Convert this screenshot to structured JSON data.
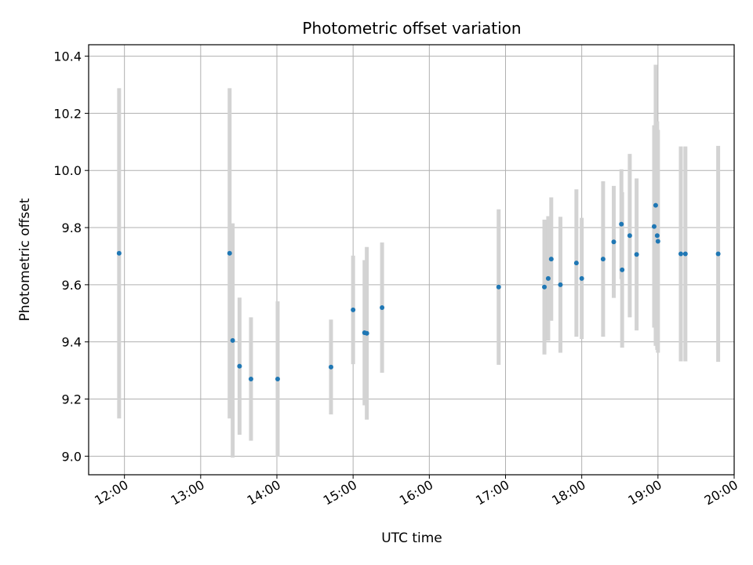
{
  "chart_data": {
    "type": "scatter",
    "title": "Photometric offset variation",
    "xlabel": "UTC time",
    "ylabel": "Photometric offset",
    "x_unit": "hours",
    "xlim": [
      11.53,
      20.0
    ],
    "ylim": [
      8.935,
      10.44
    ],
    "grid": true,
    "x_ticks": [
      {
        "value": 12,
        "label": "12:00"
      },
      {
        "value": 13,
        "label": "13:00"
      },
      {
        "value": 14,
        "label": "14:00"
      },
      {
        "value": 15,
        "label": "15:00"
      },
      {
        "value": 16,
        "label": "16:00"
      },
      {
        "value": 17,
        "label": "17:00"
      },
      {
        "value": 18,
        "label": "18:00"
      },
      {
        "value": 19,
        "label": "19:00"
      },
      {
        "value": 20,
        "label": "20:00"
      }
    ],
    "y_ticks": [
      {
        "value": 9.0,
        "label": "9.0"
      },
      {
        "value": 9.2,
        "label": "9.2"
      },
      {
        "value": 9.4,
        "label": "9.4"
      },
      {
        "value": 9.6,
        "label": "9.6"
      },
      {
        "value": 9.8,
        "label": "9.8"
      },
      {
        "value": 10.0,
        "label": "10.0"
      },
      {
        "value": 10.2,
        "label": "10.2"
      },
      {
        "value": 10.4,
        "label": "10.4"
      }
    ],
    "colors": {
      "point": "#1f77b4",
      "errorbar": "#d3d3d3",
      "grid": "#b0b0b0"
    },
    "points": [
      {
        "x": 11.93,
        "y": 9.71,
        "err": 0.578
      },
      {
        "x": 13.38,
        "y": 9.71,
        "err": 0.578
      },
      {
        "x": 13.42,
        "y": 9.405,
        "err": 0.41
      },
      {
        "x": 13.51,
        "y": 9.315,
        "err": 0.24
      },
      {
        "x": 13.66,
        "y": 9.27,
        "err": 0.216
      },
      {
        "x": 14.01,
        "y": 9.27,
        "err": 0.272
      },
      {
        "x": 14.71,
        "y": 9.312,
        "err": 0.166
      },
      {
        "x": 15.0,
        "y": 9.512,
        "err": 0.19
      },
      {
        "x": 15.15,
        "y": 9.432,
        "err": 0.254
      },
      {
        "x": 15.18,
        "y": 9.43,
        "err": 0.302
      },
      {
        "x": 15.38,
        "y": 9.52,
        "err": 0.228
      },
      {
        "x": 16.91,
        "y": 9.592,
        "err": 0.272
      },
      {
        "x": 17.51,
        "y": 9.592,
        "err": 0.236
      },
      {
        "x": 17.56,
        "y": 9.622,
        "err": 0.218
      },
      {
        "x": 17.6,
        "y": 9.69,
        "err": 0.216
      },
      {
        "x": 17.72,
        "y": 9.6,
        "err": 0.238
      },
      {
        "x": 17.93,
        "y": 9.676,
        "err": 0.258
      },
      {
        "x": 18.0,
        "y": 9.622,
        "err": 0.212
      },
      {
        "x": 18.28,
        "y": 9.69,
        "err": 0.272
      },
      {
        "x": 18.42,
        "y": 9.75,
        "err": 0.196
      },
      {
        "x": 18.52,
        "y": 9.812,
        "err": 0.192
      },
      {
        "x": 18.53,
        "y": 9.652,
        "err": 0.272
      },
      {
        "x": 18.63,
        "y": 9.772,
        "err": 0.286
      },
      {
        "x": 18.72,
        "y": 9.706,
        "err": 0.266
      },
      {
        "x": 18.95,
        "y": 9.804,
        "err": 0.354
      },
      {
        "x": 18.97,
        "y": 9.878,
        "err": 0.492
      },
      {
        "x": 18.99,
        "y": 9.772,
        "err": 0.4
      },
      {
        "x": 19.0,
        "y": 9.752,
        "err": 0.39
      },
      {
        "x": 19.3,
        "y": 9.708,
        "err": 0.376
      },
      {
        "x": 19.36,
        "y": 9.708,
        "err": 0.376
      },
      {
        "x": 19.79,
        "y": 9.708,
        "err": 0.378
      }
    ]
  }
}
